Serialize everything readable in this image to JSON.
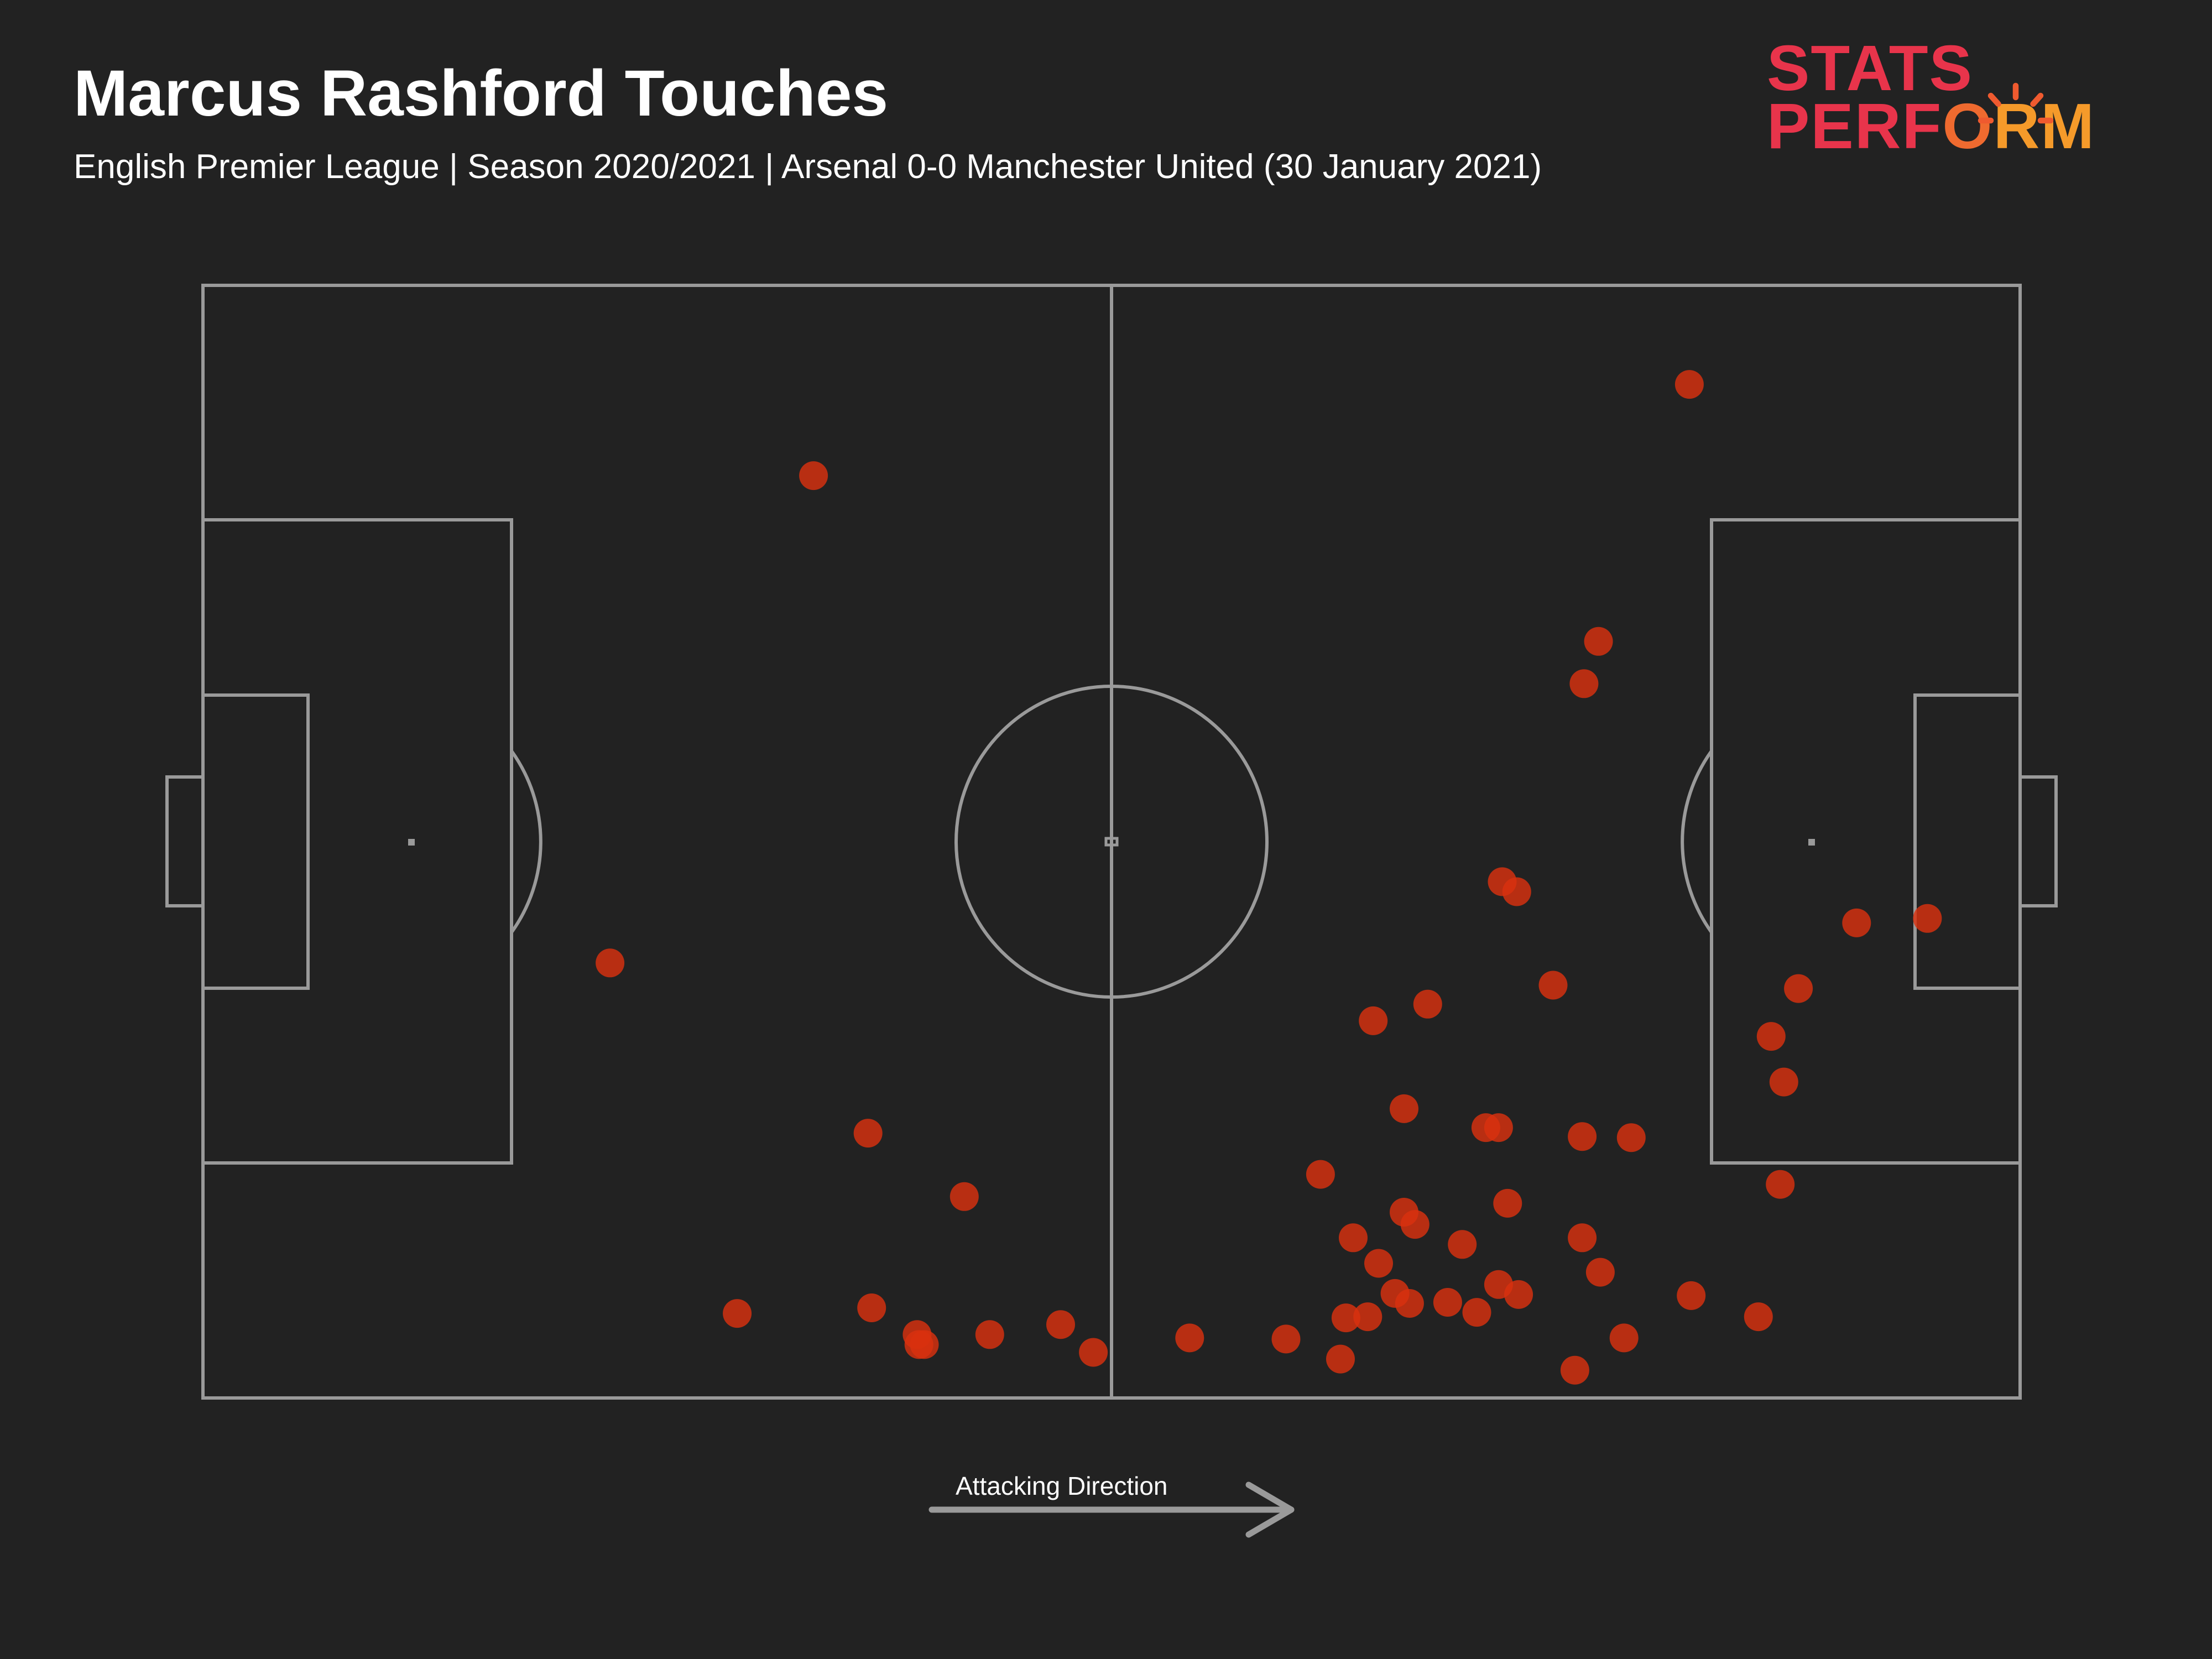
{
  "header": {
    "title": "Marcus Rashford Touches",
    "subtitle": "English Premier League | Season 2020/2021 | Arsenal 0-0 Manchester United (30 January 2021)"
  },
  "logo": {
    "line1": "STATS",
    "line2_a": "PERF",
    "line2_b": "O",
    "line2_c": "RM"
  },
  "direction": {
    "label": "Attacking Direction"
  },
  "colors": {
    "background": "#222222",
    "pitch_lines": "#9a9a9a",
    "touch_marker": "#d9310f",
    "logo_red": "#e8344b",
    "logo_orange": "#f59a2a"
  },
  "chart_data": {
    "type": "scatter",
    "title": "Marcus Rashford Touches",
    "xlabel": "",
    "ylabel": "",
    "xlim": [
      0,
      100
    ],
    "ylim": [
      0,
      100
    ],
    "grid": false,
    "series": [
      {
        "points": [
          {
            "x": 33.6,
            "y": 82.9
          },
          {
            "x": 81.8,
            "y": 91.1
          },
          {
            "x": 22.4,
            "y": 39.1
          },
          {
            "x": 76.8,
            "y": 68.0
          },
          {
            "x": 76.0,
            "y": 64.2
          },
          {
            "x": 72.3,
            "y": 45.5
          },
          {
            "x": 71.5,
            "y": 46.4
          },
          {
            "x": 74.3,
            "y": 37.1
          },
          {
            "x": 64.4,
            "y": 33.9
          },
          {
            "x": 67.4,
            "y": 35.4
          },
          {
            "x": 91.0,
            "y": 42.7
          },
          {
            "x": 94.9,
            "y": 43.1
          },
          {
            "x": 87.8,
            "y": 36.8
          },
          {
            "x": 86.3,
            "y": 32.5
          },
          {
            "x": 87.0,
            "y": 28.4
          },
          {
            "x": 66.1,
            "y": 26.0
          },
          {
            "x": 70.6,
            "y": 24.3
          },
          {
            "x": 71.3,
            "y": 24.3
          },
          {
            "x": 75.9,
            "y": 23.5
          },
          {
            "x": 78.6,
            "y": 23.4
          },
          {
            "x": 86.8,
            "y": 19.2
          },
          {
            "x": 36.6,
            "y": 23.8
          },
          {
            "x": 41.9,
            "y": 18.1
          },
          {
            "x": 61.5,
            "y": 20.1
          },
          {
            "x": 66.1,
            "y": 16.7
          },
          {
            "x": 66.7,
            "y": 15.6
          },
          {
            "x": 71.8,
            "y": 17.5
          },
          {
            "x": 63.3,
            "y": 14.4
          },
          {
            "x": 69.3,
            "y": 13.8
          },
          {
            "x": 75.9,
            "y": 14.4
          },
          {
            "x": 76.9,
            "y": 11.3
          },
          {
            "x": 64.7,
            "y": 12.1
          },
          {
            "x": 72.4,
            "y": 9.3
          },
          {
            "x": 70.1,
            "y": 7.7
          },
          {
            "x": 66.4,
            "y": 8.5
          },
          {
            "x": 68.5,
            "y": 8.6
          },
          {
            "x": 71.3,
            "y": 10.2
          },
          {
            "x": 64.1,
            "y": 7.3
          },
          {
            "x": 65.6,
            "y": 9.4
          },
          {
            "x": 62.9,
            "y": 7.2
          },
          {
            "x": 62.6,
            "y": 3.5
          },
          {
            "x": 59.6,
            "y": 5.3
          },
          {
            "x": 54.3,
            "y": 5.4
          },
          {
            "x": 49.0,
            "y": 4.1
          },
          {
            "x": 81.9,
            "y": 9.2
          },
          {
            "x": 85.6,
            "y": 7.3
          },
          {
            "x": 78.2,
            "y": 5.4
          },
          {
            "x": 75.5,
            "y": 2.5
          },
          {
            "x": 29.4,
            "y": 7.6
          },
          {
            "x": 36.8,
            "y": 8.1
          },
          {
            "x": 39.3,
            "y": 5.7
          },
          {
            "x": 39.4,
            "y": 4.8
          },
          {
            "x": 39.7,
            "y": 4.8
          },
          {
            "x": 43.3,
            "y": 5.7
          },
          {
            "x": 47.2,
            "y": 6.6
          }
        ]
      }
    ]
  }
}
